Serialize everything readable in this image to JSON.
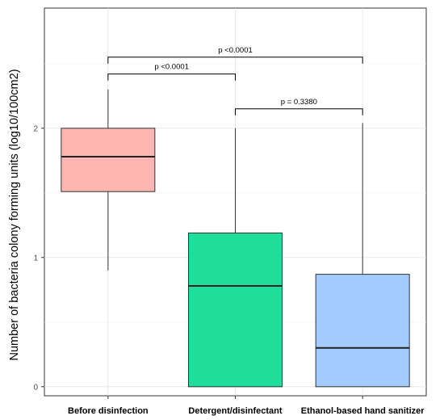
{
  "chart_data": {
    "type": "boxplot",
    "ylabel": "Number of bacteria colony forming units (log10/100cm2)",
    "xlabel": "",
    "ylim": [
      -0.07,
      2.93
    ],
    "yticks": [
      0,
      1,
      2
    ],
    "ytick_labels": [
      "0",
      "1",
      "2"
    ],
    "grid": true,
    "legend": "none",
    "categories": [
      "Before disinfection",
      "Detergent/disinfectant",
      "Ethanol-based hand sanitizer"
    ],
    "boxes": [
      {
        "category": "Before disinfection",
        "whisker_low": 0.9,
        "q1": 1.51,
        "median": 1.78,
        "q3": 2.0,
        "whisker_high": 2.3,
        "color": "#ffb6b3"
      },
      {
        "category": "Detergent/disinfectant",
        "whisker_low": 0.0,
        "q1": 0.0,
        "median": 0.78,
        "q3": 1.19,
        "whisker_high": 2.0,
        "color": "#1fdd9b"
      },
      {
        "category": "Ethanol-based hand sanitizer",
        "whisker_low": 0.0,
        "q1": 0.0,
        "median": 0.3,
        "q3": 0.87,
        "whisker_high": 2.04,
        "color": "#a3cbff"
      }
    ],
    "comparisons": [
      {
        "from": 0,
        "to": 2,
        "label": "p <0.0001",
        "y": 2.55,
        "tick_down_to": 2.5
      },
      {
        "from": 0,
        "to": 1,
        "label": "p <0.0001",
        "y": 2.42,
        "tick_down_to": 2.37
      },
      {
        "from": 1,
        "to": 2,
        "label": "p = 0.3380",
        "y": 2.15,
        "tick_down_to": 2.1
      }
    ]
  }
}
